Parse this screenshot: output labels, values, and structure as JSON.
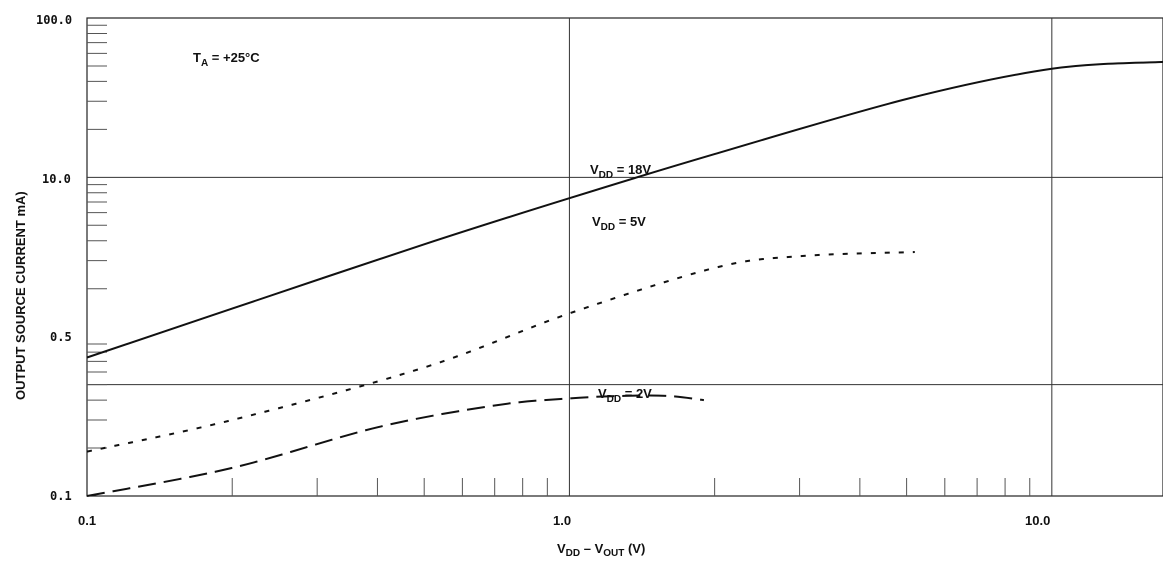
{
  "chart_data": {
    "type": "line",
    "title": "",
    "xlabel_main": "V",
    "xlabel_sub1": "DD",
    "xlabel_mid": " – V",
    "xlabel_sub2": "OUT",
    "xlabel_end": " (V)",
    "ylabel": "OUTPUT SOURCE CURRENT  mA)",
    "x_scale": "log",
    "y_scale": "log",
    "xlim": [
      0.1,
      17
    ],
    "ylim": [
      0.1,
      100
    ],
    "x_ticks": [
      "0.1",
      "1.0",
      "10.0"
    ],
    "y_ticks": [
      "0.1",
      "0.5",
      "10.0",
      "100.0"
    ],
    "grid": true,
    "annotation": {
      "main": "T",
      "sub": "A",
      "rest": " = +25°C"
    },
    "series": [
      {
        "name": "VDD = 18V",
        "label_main": "V",
        "label_sub": "DD",
        "label_rest": " = 18V",
        "dash": "solid",
        "x": [
          0.1,
          0.2,
          0.5,
          1.0,
          2.0,
          5.0,
          10.0,
          17.0
        ],
        "y": [
          0.74,
          1.5,
          3.8,
          7.4,
          14,
          31,
          48,
          53
        ]
      },
      {
        "name": "VDD = 5V",
        "label_main": "V",
        "label_sub": "DD",
        "label_rest": " = 5V",
        "dash": "short",
        "x": [
          0.1,
          0.2,
          0.5,
          1.0,
          2.0,
          3.0,
          5.2
        ],
        "y": [
          0.19,
          0.3,
          0.64,
          1.4,
          2.7,
          3.2,
          3.4
        ]
      },
      {
        "name": "VDD = 2V",
        "label_main": "V",
        "label_sub": "DD",
        "label_rest": " = 2V",
        "dash": "long",
        "x": [
          0.1,
          0.2,
          0.4,
          0.7,
          1.0,
          1.3,
          1.6,
          1.9
        ],
        "y": [
          0.1,
          0.15,
          0.27,
          0.37,
          0.41,
          0.425,
          0.425,
          0.4
        ]
      }
    ]
  }
}
